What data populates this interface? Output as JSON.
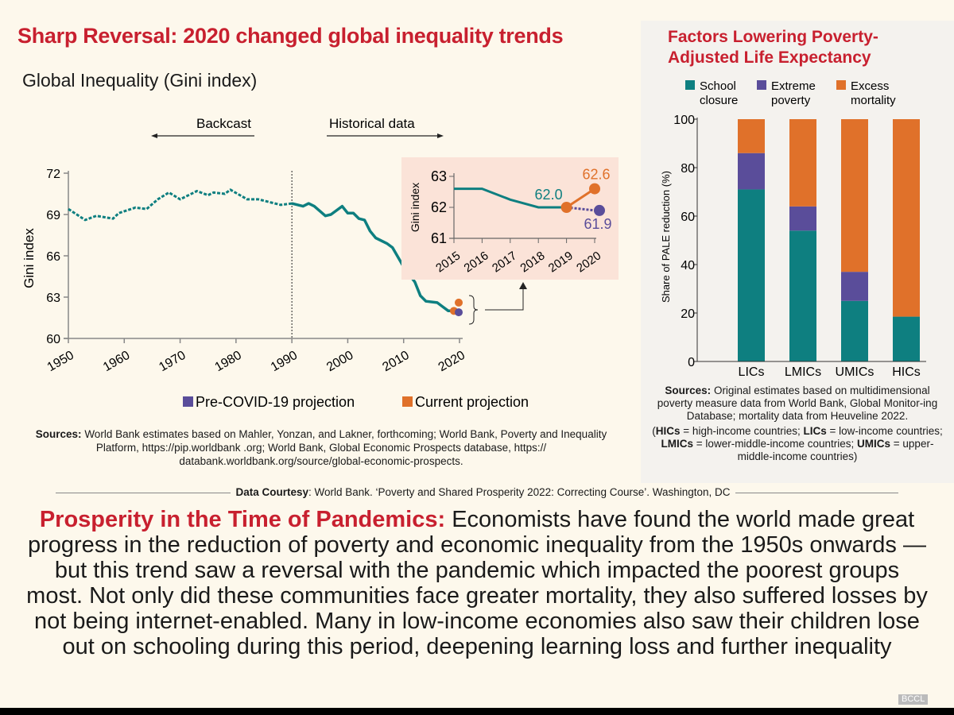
{
  "header": {
    "title": "Sharp Reversal: 2020 changed global inequality trends"
  },
  "chart_data": [
    {
      "type": "line",
      "title": "Global Inequality (Gini index)",
      "ylabel": "Gini index",
      "xlabel": "",
      "ylim": [
        60,
        72
      ],
      "yticks": [
        60,
        63,
        66,
        69,
        72
      ],
      "xlim": [
        1950,
        2020
      ],
      "xticks": [
        1950,
        1960,
        1970,
        1980,
        1990,
        2000,
        2010,
        2020
      ],
      "annotations": {
        "backcast": "Backcast",
        "historical": "Historical data"
      },
      "series": [
        {
          "name": "Backcast",
          "style": "dashed",
          "color": "#0e7f80",
          "x": [
            1950,
            1953,
            1955,
            1958,
            1959,
            1962,
            1964,
            1966,
            1968,
            1970,
            1973,
            1975,
            1976,
            1978,
            1979,
            1982,
            1984,
            1988,
            1990
          ],
          "y": [
            69.4,
            68.6,
            68.9,
            68.7,
            69.1,
            69.5,
            69.4,
            70.1,
            70.6,
            70.1,
            70.7,
            70.4,
            70.6,
            70.5,
            70.8,
            70.1,
            70.1,
            69.7,
            69.8
          ]
        },
        {
          "name": "Historical data",
          "style": "solid",
          "color": "#0e7f80",
          "x": [
            1990,
            1992,
            1993,
            1994,
            1996,
            1997,
            1999,
            2000,
            2001,
            2002,
            2003,
            2004,
            2005,
            2007,
            2008,
            2010,
            2012,
            2013,
            2014,
            2016,
            2017,
            2018,
            2019
          ],
          "y": [
            69.8,
            69.6,
            69.8,
            69.6,
            68.9,
            69.0,
            69.6,
            69.1,
            69.1,
            68.7,
            68.6,
            67.8,
            67.3,
            66.9,
            66.6,
            65.2,
            64.1,
            63.1,
            62.7,
            62.6,
            62.3,
            62.0,
            62.0
          ]
        }
      ],
      "projections": [
        {
          "name": "Pre-COVID-19 projection",
          "color": "#5a4d9a",
          "x": 2020,
          "y": 61.9
        },
        {
          "name": "Current projection",
          "color": "#e0712a",
          "x": 2020,
          "y": 62.6
        }
      ],
      "legend": [
        "Pre-COVID-19 projection",
        "Current projection"
      ],
      "legend_position": "bottom",
      "inset": {
        "ylabel": "Gini index",
        "ylim": [
          61,
          63
        ],
        "yticks": [
          61,
          62,
          63
        ],
        "xticks": [
          2015,
          2016,
          2017,
          2018,
          2019,
          2020
        ],
        "background": "#fbe3d8",
        "historical": {
          "x": [
            2015,
            2016,
            2017,
            2018,
            2019
          ],
          "y": [
            62.6,
            62.6,
            62.25,
            62.0,
            62.0
          ]
        },
        "labels": {
          "y2019": "62.0",
          "current2020": "62.6",
          "precovid2020": "61.9"
        },
        "current": {
          "x": [
            2019,
            2020
          ],
          "y": [
            62.0,
            62.6
          ]
        },
        "precovid": {
          "x": [
            2019,
            2020
          ],
          "y": [
            62.0,
            61.9
          ]
        }
      }
    },
    {
      "type": "bar",
      "stacked": true,
      "title": "Factors Lowering Poverty-Adjusted Life Expectancy",
      "ylabel": "Share of PALE reduction (%)",
      "ylim": [
        0,
        100
      ],
      "yticks": [
        0,
        20,
        40,
        60,
        80,
        100
      ],
      "categories": [
        "LICs",
        "LMICs",
        "UMICs",
        "HICs"
      ],
      "series": [
        {
          "name": "School closure",
          "legend_line1": "School",
          "legend_line2": "closure",
          "color": "#0e7f80",
          "values": [
            71,
            54,
            25,
            18.5
          ]
        },
        {
          "name": "Extreme poverty",
          "legend_line1": "Extreme",
          "legend_line2": "poverty",
          "color": "#5a4d9a",
          "values": [
            15,
            10,
            12,
            0
          ]
        },
        {
          "name": "Excess mortality",
          "legend_line1": "Excess",
          "legend_line2": "mortality",
          "color": "#e0712a",
          "values": [
            14,
            36,
            63,
            81.5
          ]
        }
      ],
      "legend_position": "top"
    }
  ],
  "right": {
    "title_line1": "Factors Lowering Poverty-",
    "title_line2": "Adjusted Life Expectancy",
    "sources_label": "Sources:",
    "sources_text": " Original estimates based on multidimensional poverty measure data from World Bank, Global Monitor-ing Database; mortality data from Heuveline 2022.",
    "abbr": [
      {
        "k": "HICs",
        "v": " = high-income countries; "
      },
      {
        "k": "LICs",
        "v": " = low-income countries; "
      },
      {
        "k": "LMICs",
        "v": " = lower-middle-income countries; "
      },
      {
        "k": "UMICs",
        "v": " = upper-middle-income countries)"
      }
    ],
    "abbr_open": "("
  },
  "left_sources": {
    "label": "Sources:",
    "text": " World Bank estimates based on Mahler, Yonzan, and Lakner, forthcoming; World Bank, Poverty and Inequality Platform, https://pip.worldbank .org; World Bank, Global Economic Prospects database, https:// databank.worldbank.org/source/global-economic-prospects."
  },
  "courtesy": {
    "label": "Data Courtesy",
    "text": ": World Bank. ‘Poverty and Shared Prosperity 2022: Correcting Course’. Washington, DC"
  },
  "body": {
    "lead": "Prosperity in the Time of Pandemics:",
    "text": " Economists have found the world made great progress in the reduction of poverty and economic inequality from the 1950s onwards — but this trend saw a reversal with the pandemic which impacted the poorest groups most. Not only did these communities face greater mortality, they also suffered losses by not being internet-enabled. Many in low-income economies also saw their children lose out on schooling during this period, deepening learning loss and further inequality"
  },
  "watermark": "BCCL",
  "colors": {
    "accent": "#c8202f",
    "teal": "#0e7f80",
    "purple": "#5a4d9a",
    "orange": "#e0712a",
    "background": "#fdf8ec"
  }
}
